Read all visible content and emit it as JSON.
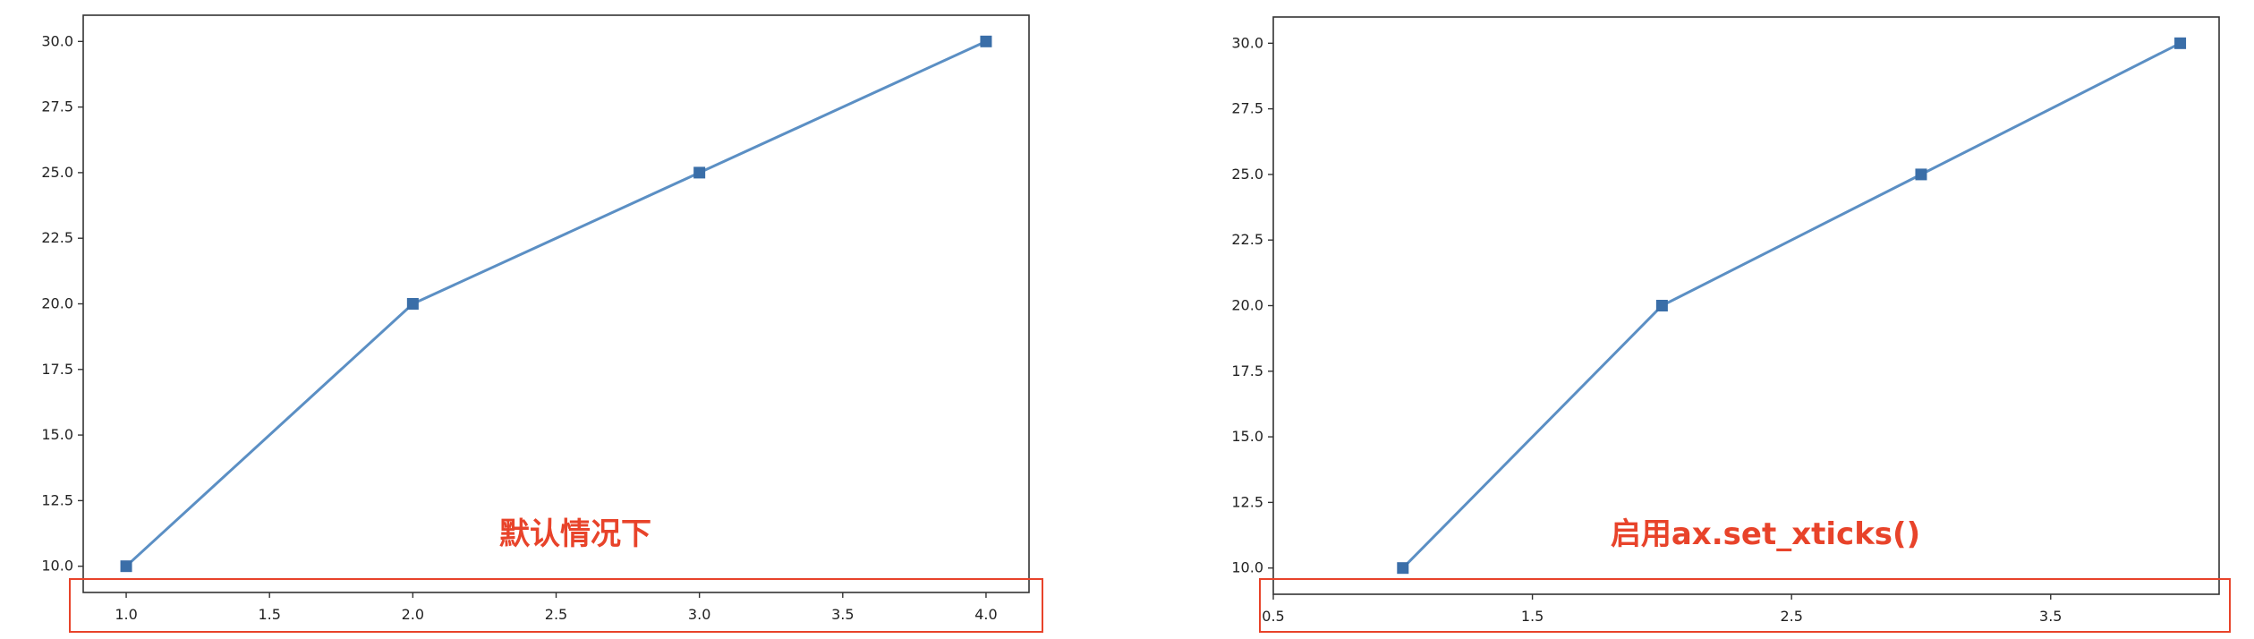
{
  "colors": {
    "line": "#5b8fc4",
    "marker": "#3a6ea8",
    "axes": "#333333",
    "annotation": "#e8432a",
    "highlight_box": "#e8432a"
  },
  "chart_data": [
    {
      "type": "line",
      "title": "",
      "xlabel": "",
      "ylabel": "",
      "x": [
        1.0,
        2.0,
        3.0,
        4.0
      ],
      "series": [
        {
          "values": [
            10,
            20,
            25,
            30
          ],
          "marker": "square"
        }
      ],
      "xlim": [
        0.85,
        4.15
      ],
      "ylim": [
        9.0,
        31.0
      ],
      "xticks": [
        "1.0",
        "1.5",
        "2.0",
        "2.5",
        "3.0",
        "3.5",
        "4.0"
      ],
      "yticks": [
        "10.0",
        "12.5",
        "15.0",
        "17.5",
        "20.0",
        "22.5",
        "25.0",
        "27.5",
        "30.0"
      ],
      "grid": false,
      "annotation": "默认情况下",
      "highlight": "x-axis tick labels"
    },
    {
      "type": "line",
      "title": "",
      "xlabel": "",
      "ylabel": "",
      "x": [
        1.0,
        2.0,
        3.0,
        4.0
      ],
      "series": [
        {
          "values": [
            10,
            20,
            25,
            30
          ],
          "marker": "square"
        }
      ],
      "xlim": [
        0.5,
        4.15
      ],
      "ylim": [
        9.0,
        31.0
      ],
      "xticks": [
        "0.5",
        "1.5",
        "2.5",
        "3.5"
      ],
      "yticks": [
        "10.0",
        "12.5",
        "15.0",
        "17.5",
        "20.0",
        "22.5",
        "25.0",
        "27.5",
        "30.0"
      ],
      "grid": false,
      "annotation": "启用ax.set_xticks()",
      "highlight": "x-axis tick labels"
    }
  ]
}
